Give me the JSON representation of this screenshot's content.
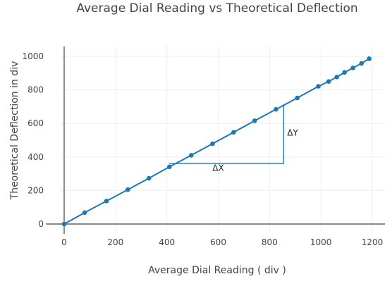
{
  "chart_data": {
    "type": "scatter",
    "title": "Average Dial Reading vs Theoretical Deflection",
    "xlabel": "Average Dial Reading ( div )",
    "ylabel": "Theoretical Deflection in div",
    "xlim": [
      -25,
      1230
    ],
    "ylim": [
      -40,
      1060
    ],
    "xticks": [
      0,
      200,
      400,
      600,
      800,
      1000,
      1200
    ],
    "yticks": [
      0,
      200,
      400,
      600,
      800,
      1000
    ],
    "grid": true,
    "line_color": "#1f77b4",
    "series": [
      {
        "mode": "lines+markers",
        "x": [
          0,
          80,
          165,
          248,
          330,
          410,
          495,
          578,
          660,
          742,
          825,
          908,
          990,
          1030,
          1062,
          1092,
          1125,
          1158,
          1188
        ],
        "y": [
          0,
          68,
          137,
          205,
          273,
          341,
          410,
          479,
          547,
          616,
          684,
          752,
          821,
          850,
          877,
          904,
          931,
          958,
          986
        ]
      }
    ],
    "annotations": [
      {
        "text": "ΔX",
        "x": 600,
        "y": 335
      },
      {
        "text": "ΔY",
        "x": 890,
        "y": 545
      }
    ],
    "slope_triangle": {
      "x0": 410,
      "y0": 361,
      "x1": 855,
      "y1": 361,
      "x2": 855,
      "y2": 715
    }
  }
}
